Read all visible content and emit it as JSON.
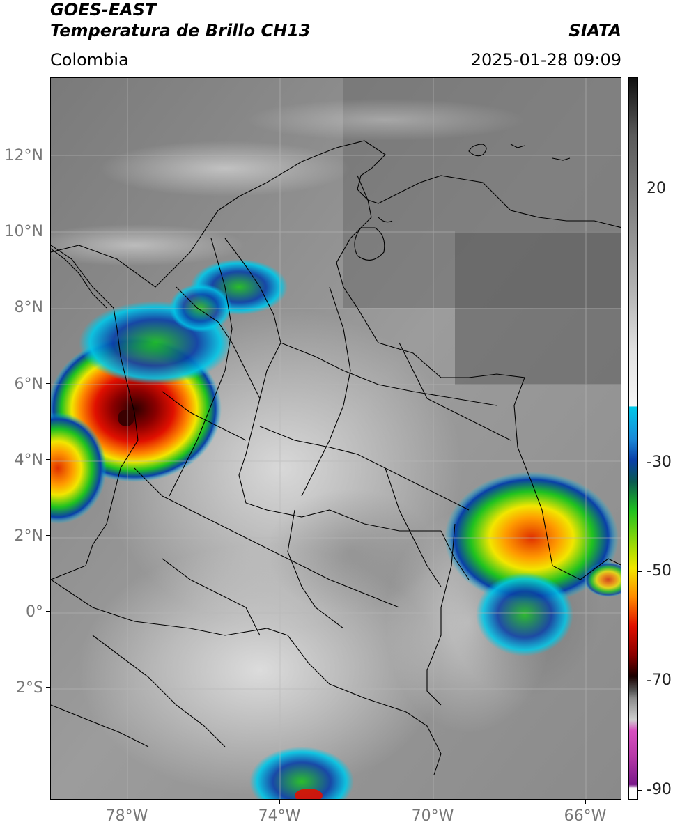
{
  "header": {
    "satellite": "GOES-EAST",
    "product": "Temperatura de Brillo CH13",
    "agency": "SIATA",
    "region": "Colombia",
    "datetime": "2025-01-28 09:09"
  },
  "map": {
    "latitude_ticks": [
      "12°N",
      "10°N",
      "8°N",
      "6°N",
      "4°N",
      "2°N",
      "0°",
      "2°S"
    ],
    "longitude_ticks": [
      "78°W",
      "74°W",
      "70°W",
      "66°W"
    ]
  },
  "colorbar": {
    "tick_labels": [
      "20",
      "-30",
      "-50",
      "-70",
      "-90"
    ],
    "colors": {
      "warm_gray_top": "#111111",
      "gray_mid": "#9a9a9a",
      "white": "#f4f4f4",
      "cyan": "#00c8e8",
      "blue": "#0a3fa8",
      "green": "#1fc21f",
      "yellow": "#f2e600",
      "orange": "#ff8a00",
      "red": "#d80000",
      "dark_red": "#5a0000",
      "magenta": "#d84fc0",
      "purple": "#7a1a8a"
    }
  }
}
